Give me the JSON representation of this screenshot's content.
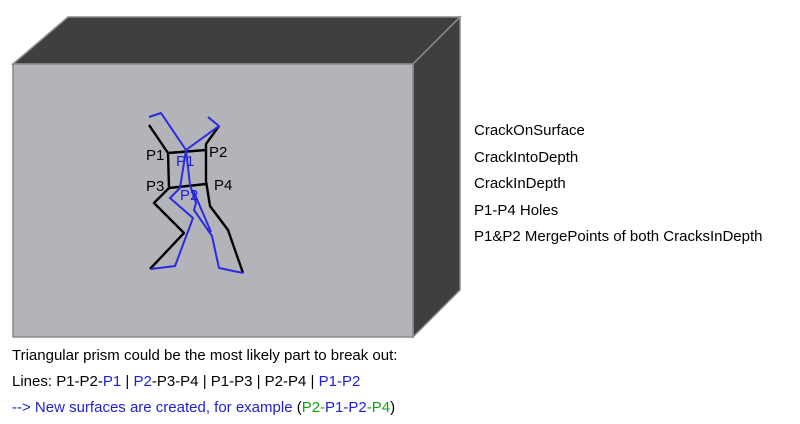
{
  "colors": {
    "face_front": "#b3b3ba",
    "face_dark": "#3f3f3f",
    "edge": "#8a8a8a",
    "crack_black": "#000000",
    "crack_blue": "#2b2be0",
    "text_blue": "#1f1fd6",
    "text_green": "#13a313"
  },
  "points": {
    "p1_black": "P1",
    "p1_blue": "P1",
    "p2_black": "P2",
    "p2_blue": "P2",
    "p3": "P3",
    "p4": "P4"
  },
  "legend": [
    "CrackOnSurface",
    "CrackIntoDepth",
    "CrackInDepth",
    "P1-P4 Holes",
    "P1&P2 MergePoints of both CracksInDepth"
  ],
  "caption": {
    "line1": "Triangular prism could be the most likely part to break out:",
    "line2": [
      {
        "text": "Lines: P1-P2-",
        "color": "black"
      },
      {
        "text": "P1",
        "color": "blue"
      },
      {
        "text": " | ",
        "color": "black"
      },
      {
        "text": "P2",
        "color": "blue"
      },
      {
        "text": "-P3-P4 | P1-P3 | P2-P4 | ",
        "color": "black"
      },
      {
        "text": "P1-P2",
        "color": "blue"
      }
    ],
    "line3": [
      {
        "text": "--> New surfaces are created, for example ",
        "color": "blue"
      },
      {
        "text": "(",
        "color": "black"
      },
      {
        "text": "P2-",
        "color": "green"
      },
      {
        "text": "P1-P2",
        "color": "blue"
      },
      {
        "text": "-P4",
        "color": "green"
      },
      {
        "text": ")",
        "color": "black"
      }
    ]
  }
}
